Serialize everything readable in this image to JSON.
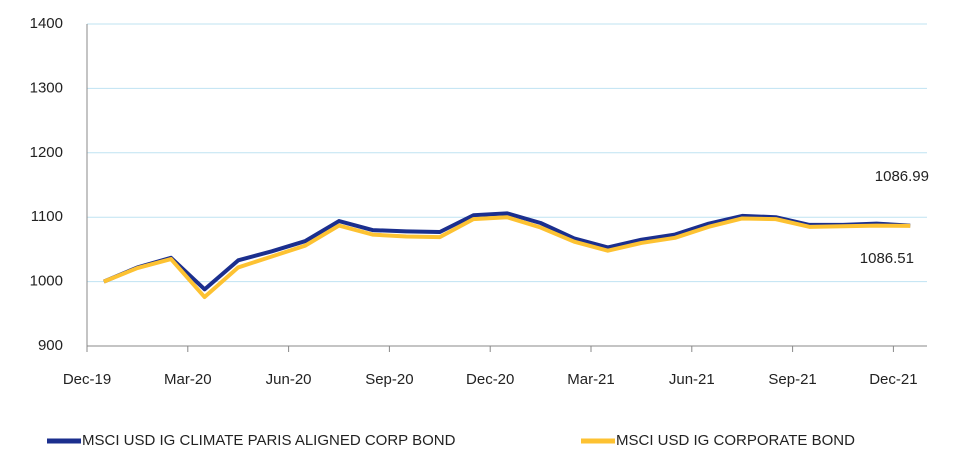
{
  "chart_data": {
    "type": "line",
    "categories": [
      "Dec-19",
      null,
      null,
      "Mar-20",
      null,
      null,
      "Jun-20",
      null,
      null,
      "Sep-20",
      null,
      null,
      "Dec-20",
      null,
      null,
      "Mar-21",
      null,
      null,
      "Jun-21",
      null,
      null,
      "Sep-21",
      null,
      null,
      "Dec-21"
    ],
    "series": [
      {
        "name": "MSCI USD IG CLIMATE PARIS ALIGNED CORP BOND",
        "color": "#1b2f8e",
        "values": [
          1000,
          1022,
          1037,
          988,
          1033,
          1047,
          1063,
          1094,
          1080,
          1078,
          1077,
          1103,
          1106,
          1091,
          1067,
          1053,
          1065,
          1073,
          1090,
          1102,
          1100,
          1088,
          1088,
          1090,
          1086.99
        ]
      },
      {
        "name": "MSCI USD IG CORPORATE BOND",
        "color": "#fdc232",
        "values": [
          1000,
          1021,
          1035,
          976,
          1022,
          1039,
          1056,
          1087,
          1073,
          1070,
          1069,
          1097,
          1100,
          1084,
          1062,
          1048,
          1060,
          1068,
          1085,
          1098,
          1097,
          1085,
          1086,
          1087,
          1086.51
        ]
      }
    ],
    "ylim": [
      900,
      1400
    ],
    "yticks": [
      900,
      1000,
      1100,
      1200,
      1300,
      1400
    ],
    "grid": true,
    "legend": "bottom"
  }
}
